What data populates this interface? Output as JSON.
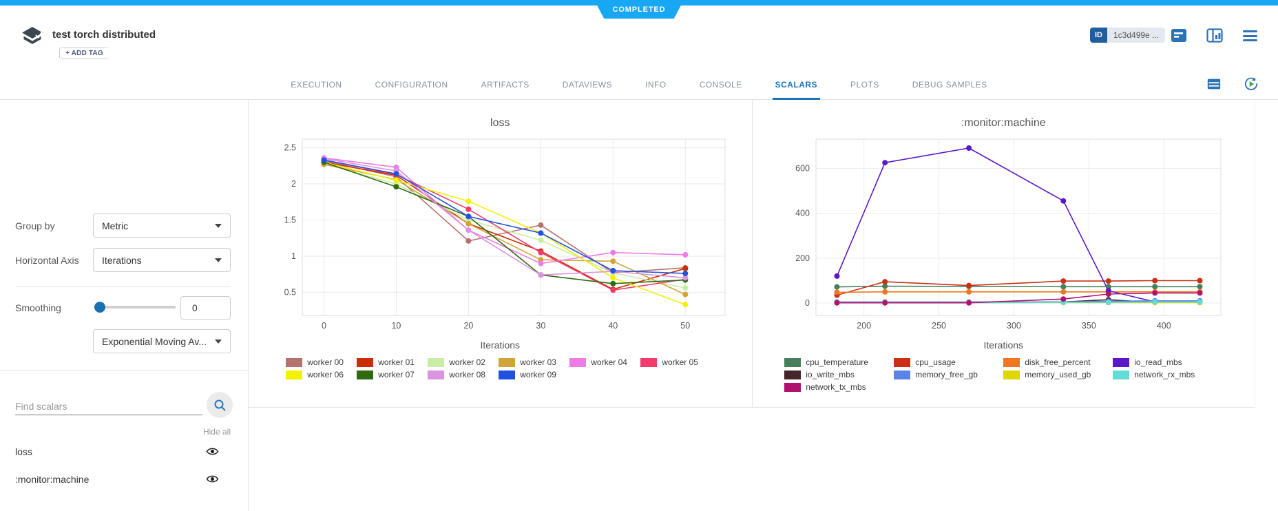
{
  "status_badge": {
    "label": "COMPLETED"
  },
  "header": {
    "title": "test torch distributed",
    "add_tag_label": "+ ADD TAG",
    "id_badge": {
      "label": "ID",
      "value": "1c3d499e ..."
    }
  },
  "tabs": [
    {
      "label": "EXECUTION",
      "active": false
    },
    {
      "label": "CONFIGURATION",
      "active": false
    },
    {
      "label": "ARTIFACTS",
      "active": false
    },
    {
      "label": "DATAVIEWS",
      "active": false
    },
    {
      "label": "INFO",
      "active": false
    },
    {
      "label": "CONSOLE",
      "active": false
    },
    {
      "label": "SCALARS",
      "active": true
    },
    {
      "label": "PLOTS",
      "active": false
    },
    {
      "label": "DEBUG SAMPLES",
      "active": false
    }
  ],
  "sidebar": {
    "group_by_label": "Group by",
    "group_by_value": "Metric",
    "horizontal_axis_label": "Horizontal Axis",
    "horizontal_axis_value": "Iterations",
    "smoothing_label": "Smoothing",
    "smoothing_value": "0",
    "smoothing_type_value": "Exponential Moving Av...",
    "find_scalars_placeholder": "Find scalars",
    "hide_all_label": "Hide all",
    "scalars": [
      {
        "name": "loss",
        "visible": true
      },
      {
        "name": ":monitor:machine",
        "visible": true
      }
    ]
  },
  "colors": {
    "accent_blue": "#1a73b8",
    "status_blue": "#17a7f3"
  },
  "chart_data": [
    {
      "type": "line",
      "title": "loss",
      "xlabel": "Iterations",
      "ylabel": "",
      "x": [
        0,
        10,
        20,
        30,
        40,
        50
      ],
      "xlim": [
        -3,
        55.5
      ],
      "ylim": [
        0.18,
        2.62
      ],
      "xticks": [
        0,
        10,
        20,
        30,
        40,
        50
      ],
      "yticks": [
        0.5,
        1,
        1.5,
        2,
        2.5
      ],
      "grid": true,
      "legend_position": "bottom",
      "series": [
        {
          "name": "worker 00",
          "color": "#b5736e",
          "values": [
            2.32,
            2.1,
            1.21,
            1.43,
            0.77,
            0.84
          ]
        },
        {
          "name": "worker 01",
          "color": "#cb2d05",
          "values": [
            2.3,
            2.12,
            1.45,
            1.07,
            0.54,
            0.83
          ]
        },
        {
          "name": "worker 02",
          "color": "#c9eda5",
          "values": [
            2.28,
            2.0,
            1.5,
            1.22,
            0.77,
            0.56
          ]
        },
        {
          "name": "worker 03",
          "color": "#d0a439",
          "values": [
            2.27,
            2.06,
            1.45,
            0.95,
            0.93,
            0.47
          ]
        },
        {
          "name": "worker 04",
          "color": "#ee7ce4",
          "values": [
            2.36,
            2.23,
            1.36,
            0.9,
            1.05,
            1.02
          ]
        },
        {
          "name": "worker 05",
          "color": "#f23a6d",
          "values": [
            2.33,
            2.13,
            1.65,
            1.05,
            0.53,
            0.68
          ]
        },
        {
          "name": "worker 06",
          "color": "#f2f200",
          "values": [
            2.3,
            2.05,
            1.76,
            1.32,
            0.7,
            0.33
          ]
        },
        {
          "name": "worker 07",
          "color": "#2e6b10",
          "values": [
            2.3,
            1.96,
            1.55,
            0.74,
            0.62,
            0.67
          ]
        },
        {
          "name": "worker 08",
          "color": "#dc93e0",
          "values": [
            2.35,
            2.18,
            1.36,
            0.74,
            0.79,
            0.7
          ]
        },
        {
          "name": "worker 09",
          "color": "#2151e0",
          "values": [
            2.33,
            2.14,
            1.55,
            1.32,
            0.8,
            0.76
          ]
        }
      ]
    },
    {
      "type": "line",
      "title": ":monitor:machine",
      "xlabel": "Iterations",
      "ylabel": "",
      "x": [
        182,
        214,
        270,
        333,
        363,
        394,
        424
      ],
      "xlim": [
        168,
        438
      ],
      "ylim": [
        -55,
        730
      ],
      "xticks": [
        200,
        250,
        300,
        350,
        400
      ],
      "yticks": [
        0,
        200,
        400,
        600
      ],
      "grid": true,
      "legend_position": "bottom",
      "series": [
        {
          "name": "cpu_temperature",
          "color": "#477f5b",
          "values": [
            72,
            75,
            74,
            73,
            73,
            73,
            73
          ]
        },
        {
          "name": "cpu_usage",
          "color": "#c93014",
          "values": [
            35,
            95,
            78,
            98,
            98,
            100,
            100
          ]
        },
        {
          "name": "disk_free_percent",
          "color": "#f0761f",
          "values": [
            48,
            50,
            50,
            50,
            50,
            50,
            50
          ]
        },
        {
          "name": "io_read_mbs",
          "color": "#5a18c8",
          "values": [
            120,
            625,
            690,
            455,
            55,
            5,
            5
          ]
        },
        {
          "name": "io_write_mbs",
          "color": "#46262b",
          "values": [
            2,
            2,
            2,
            5,
            15,
            3,
            3
          ]
        },
        {
          "name": "memory_free_gb",
          "color": "#5b83e8",
          "values": [
            5,
            5,
            5,
            5,
            8,
            10,
            10
          ]
        },
        {
          "name": "memory_used_gb",
          "color": "#ddd600",
          "values": [
            2,
            2,
            2,
            2,
            2,
            2,
            2
          ]
        },
        {
          "name": "network_rx_mbs",
          "color": "#62dcd4",
          "values": [
            1,
            1,
            1,
            3,
            3,
            5,
            5
          ]
        },
        {
          "name": "network_tx_mbs",
          "color": "#b01270",
          "values": [
            1,
            1,
            1,
            18,
            40,
            45,
            45
          ]
        }
      ]
    }
  ]
}
